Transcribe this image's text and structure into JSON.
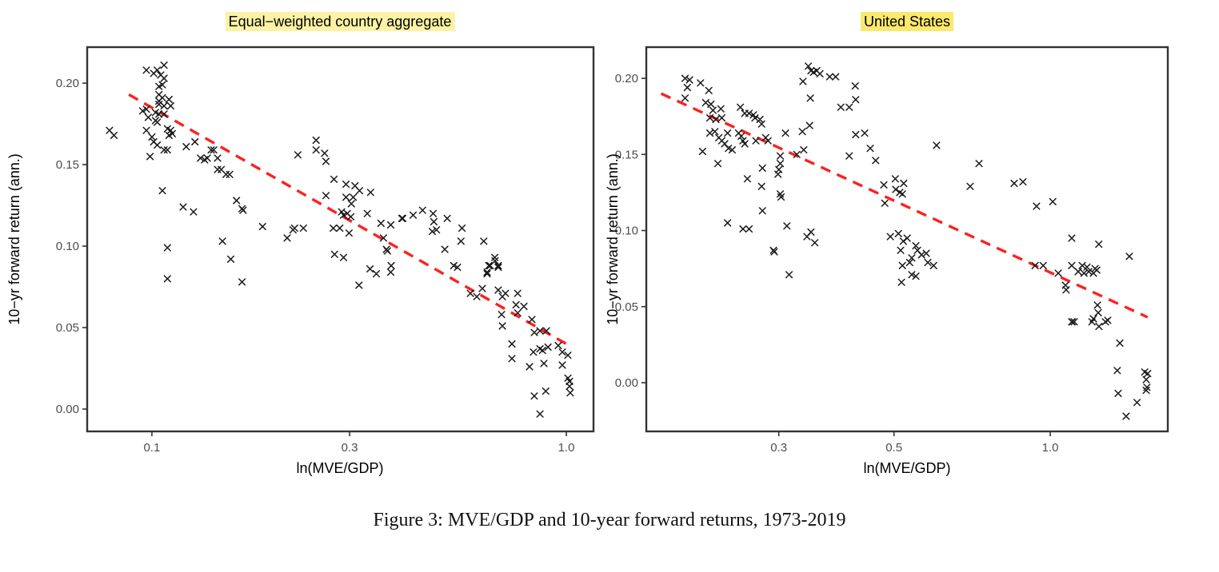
{
  "figure": {
    "caption": "Figure 3: MVE/GDP and 10-year forward returns, 1973-2019"
  },
  "colors": {
    "background": "#ffffff",
    "marker": "#1a1a1a",
    "trend_red": "#fb2222",
    "border": "#333333",
    "tick_text": "#4d4d4d",
    "axis_title_text": "#000000",
    "highlight_left": "#fbf2a5",
    "highlight_right": "#fae96e"
  },
  "chart_data": [
    {
      "type": "scatter",
      "title": "Equal−weighted country aggregate",
      "xlabel": "ln(MVE/GDP)",
      "ylabel": "10−yr forward return (ann.)",
      "x_scale": "log",
      "xlim": [
        0.0698,
        1.163
      ],
      "ylim": [
        -0.0137,
        0.2221
      ],
      "xticks": {
        "values": [
          0.1,
          0.3,
          1.0
        ],
        "labels": [
          "0.1",
          "0.3",
          "1.0"
        ]
      },
      "yticks": {
        "values": [
          0.0,
          0.05,
          0.1,
          0.15,
          0.2
        ],
        "labels": [
          "0.00",
          "0.05",
          "0.10",
          "0.15",
          "0.20"
        ]
      },
      "marker": "x",
      "grid": false,
      "legend": "none",
      "trend": {
        "style": "dashed",
        "color_key": "trend_red",
        "x": [
          0.088,
          1.0
        ],
        "y": [
          0.193,
          0.04
        ]
      },
      "points": [
        [
          0.079,
          0.171
        ],
        [
          0.081,
          0.168
        ],
        [
          0.097,
          0.208
        ],
        [
          0.101,
          0.206
        ],
        [
          0.103,
          0.208
        ],
        [
          0.107,
          0.211
        ],
        [
          0.105,
          0.205
        ],
        [
          0.107,
          0.203
        ],
        [
          0.104,
          0.198
        ],
        [
          0.106,
          0.199
        ],
        [
          0.104,
          0.193
        ],
        [
          0.106,
          0.191
        ],
        [
          0.104,
          0.189
        ],
        [
          0.11,
          0.19
        ],
        [
          0.104,
          0.187
        ],
        [
          0.107,
          0.186
        ],
        [
          0.111,
          0.186
        ],
        [
          0.095,
          0.183
        ],
        [
          0.097,
          0.184
        ],
        [
          0.102,
          0.182
        ],
        [
          0.104,
          0.181
        ],
        [
          0.107,
          0.181
        ],
        [
          0.098,
          0.179
        ],
        [
          0.102,
          0.177
        ],
        [
          0.103,
          0.176
        ],
        [
          0.097,
          0.171
        ],
        [
          0.1,
          0.167
        ],
        [
          0.101,
          0.164
        ],
        [
          0.103,
          0.162
        ],
        [
          0.109,
          0.172
        ],
        [
          0.111,
          0.171
        ],
        [
          0.11,
          0.168
        ],
        [
          0.112,
          0.169
        ],
        [
          0.107,
          0.159
        ],
        [
          0.109,
          0.159
        ],
        [
          0.099,
          0.155
        ],
        [
          0.121,
          0.161
        ],
        [
          0.127,
          0.164
        ],
        [
          0.131,
          0.154
        ],
        [
          0.134,
          0.153
        ],
        [
          0.136,
          0.154
        ],
        [
          0.141,
          0.159
        ],
        [
          0.144,
          0.154
        ],
        [
          0.147,
          0.147
        ],
        [
          0.151,
          0.144
        ],
        [
          0.154,
          0.144
        ],
        [
          0.139,
          0.159
        ],
        [
          0.144,
          0.147
        ],
        [
          0.16,
          0.128
        ],
        [
          0.165,
          0.123
        ],
        [
          0.166,
          0.122
        ],
        [
          0.185,
          0.112
        ],
        [
          0.106,
          0.134
        ],
        [
          0.119,
          0.124
        ],
        [
          0.126,
          0.121
        ],
        [
          0.109,
          0.099
        ],
        [
          0.148,
          0.103
        ],
        [
          0.155,
          0.092
        ],
        [
          0.109,
          0.08
        ],
        [
          0.165,
          0.078
        ],
        [
          0.212,
          0.105
        ],
        [
          0.219,
          0.11
        ],
        [
          0.221,
          0.111
        ],
        [
          0.232,
          0.111
        ],
        [
          0.225,
          0.156
        ],
        [
          0.249,
          0.165
        ],
        [
          0.249,
          0.159
        ],
        [
          0.261,
          0.157
        ],
        [
          0.263,
          0.152
        ],
        [
          0.275,
          0.141
        ],
        [
          0.263,
          0.131
        ],
        [
          0.294,
          0.138
        ],
        [
          0.309,
          0.137
        ],
        [
          0.294,
          0.13
        ],
        [
          0.306,
          0.13
        ],
        [
          0.317,
          0.134
        ],
        [
          0.337,
          0.133
        ],
        [
          0.303,
          0.126
        ],
        [
          0.287,
          0.121
        ],
        [
          0.296,
          0.12
        ],
        [
          0.29,
          0.119
        ],
        [
          0.302,
          0.118
        ],
        [
          0.331,
          0.12
        ],
        [
          0.274,
          0.111
        ],
        [
          0.284,
          0.111
        ],
        [
          0.299,
          0.108
        ],
        [
          0.276,
          0.095
        ],
        [
          0.29,
          0.093
        ],
        [
          0.316,
          0.076
        ],
        [
          0.336,
          0.086
        ],
        [
          0.348,
          0.083
        ],
        [
          0.378,
          0.088
        ],
        [
          0.377,
          0.084
        ],
        [
          0.357,
          0.114
        ],
        [
          0.377,
          0.113
        ],
        [
          0.401,
          0.117
        ],
        [
          0.362,
          0.105
        ],
        [
          0.368,
          0.098
        ],
        [
          0.37,
          0.097
        ],
        [
          0.403,
          0.117
        ],
        [
          0.427,
          0.119
        ],
        [
          0.45,
          0.122
        ],
        [
          0.477,
          0.12
        ],
        [
          0.479,
          0.115
        ],
        [
          0.486,
          0.11
        ],
        [
          0.475,
          0.109
        ],
        [
          0.516,
          0.117
        ],
        [
          0.56,
          0.111
        ],
        [
          0.557,
          0.103
        ],
        [
          0.632,
          0.103
        ],
        [
          0.509,
          0.098
        ],
        [
          0.535,
          0.088
        ],
        [
          0.672,
          0.093
        ],
        [
          0.673,
          0.091
        ],
        [
          0.655,
          0.088
        ],
        [
          0.685,
          0.087
        ],
        [
          0.644,
          0.084
        ],
        [
          0.546,
          0.087
        ],
        [
          0.65,
          0.088
        ],
        [
          0.685,
          0.088
        ],
        [
          0.644,
          0.083
        ],
        [
          0.627,
          0.074
        ],
        [
          0.587,
          0.071
        ],
        [
          0.608,
          0.069
        ],
        [
          0.685,
          0.073
        ],
        [
          0.713,
          0.071
        ],
        [
          0.701,
          0.069
        ],
        [
          0.763,
          0.071
        ],
        [
          0.756,
          0.064
        ],
        [
          0.79,
          0.063
        ],
        [
          0.698,
          0.058
        ],
        [
          0.763,
          0.059
        ],
        [
          0.701,
          0.051
        ],
        [
          0.826,
          0.055
        ],
        [
          0.837,
          0.047
        ],
        [
          0.864,
          0.048
        ],
        [
          0.895,
          0.048
        ],
        [
          0.739,
          0.04
        ],
        [
          0.833,
          0.035
        ],
        [
          0.864,
          0.037
        ],
        [
          0.876,
          0.036
        ],
        [
          0.903,
          0.038
        ],
        [
          0.956,
          0.039
        ],
        [
          0.978,
          0.035
        ],
        [
          1.009,
          0.033
        ],
        [
          0.739,
          0.031
        ],
        [
          0.815,
          0.026
        ],
        [
          0.883,
          0.028
        ],
        [
          0.978,
          0.027
        ],
        [
          1.009,
          0.019
        ],
        [
          1.018,
          0.017
        ],
        [
          1.018,
          0.014
        ],
        [
          1.022,
          0.01
        ],
        [
          0.837,
          0.008
        ],
        [
          0.892,
          0.011
        ],
        [
          0.864,
          -0.003
        ]
      ]
    },
    {
      "type": "scatter",
      "title": "United States",
      "xlabel": "ln(MVE/GDP)",
      "ylabel": "10−yr forward return (ann.)",
      "x_scale": "log",
      "xlim": [
        0.1667,
        1.684
      ],
      "ylim": [
        -0.032,
        0.2205
      ],
      "xticks": {
        "values": [
          0.3,
          0.5,
          1.0
        ],
        "labels": [
          "0.3",
          "0.5",
          "1.0"
        ]
      },
      "yticks": {
        "values": [
          0.0,
          0.05,
          0.1,
          0.15,
          0.2
        ],
        "labels": [
          "0.00",
          "0.05",
          "0.10",
          "0.15",
          "0.20"
        ]
      },
      "marker": "x",
      "grid": false,
      "legend": "none",
      "trend": {
        "style": "dashed",
        "color_key": "trend_red",
        "x": [
          0.178,
          1.54
        ],
        "y": [
          0.19,
          0.043
        ]
      },
      "points": [
        [
          0.198,
          0.2
        ],
        [
          0.202,
          0.199
        ],
        [
          0.212,
          0.197
        ],
        [
          0.2,
          0.194
        ],
        [
          0.198,
          0.187
        ],
        [
          0.22,
          0.192
        ],
        [
          0.217,
          0.184
        ],
        [
          0.222,
          0.183
        ],
        [
          0.224,
          0.179
        ],
        [
          0.232,
          0.18
        ],
        [
          0.221,
          0.174
        ],
        [
          0.227,
          0.173
        ],
        [
          0.233,
          0.174
        ],
        [
          0.253,
          0.181
        ],
        [
          0.258,
          0.177
        ],
        [
          0.263,
          0.177
        ],
        [
          0.268,
          0.176
        ],
        [
          0.27,
          0.174
        ],
        [
          0.276,
          0.173
        ],
        [
          0.278,
          0.17
        ],
        [
          0.221,
          0.164
        ],
        [
          0.226,
          0.165
        ],
        [
          0.23,
          0.161
        ],
        [
          0.239,
          0.164
        ],
        [
          0.233,
          0.159
        ],
        [
          0.236,
          0.157
        ],
        [
          0.24,
          0.154
        ],
        [
          0.244,
          0.153
        ],
        [
          0.251,
          0.164
        ],
        [
          0.254,
          0.162
        ],
        [
          0.256,
          0.159
        ],
        [
          0.258,
          0.157
        ],
        [
          0.271,
          0.159
        ],
        [
          0.283,
          0.161
        ],
        [
          0.286,
          0.159
        ],
        [
          0.214,
          0.152
        ],
        [
          0.229,
          0.144
        ],
        [
          0.302,
          0.149
        ],
        [
          0.302,
          0.144
        ],
        [
          0.3,
          0.14
        ],
        [
          0.299,
          0.137
        ],
        [
          0.279,
          0.141
        ],
        [
          0.261,
          0.134
        ],
        [
          0.278,
          0.129
        ],
        [
          0.309,
          0.164
        ],
        [
          0.333,
          0.165
        ],
        [
          0.344,
          0.169
        ],
        [
          0.334,
          0.198
        ],
        [
          0.342,
          0.208
        ],
        [
          0.346,
          0.205
        ],
        [
          0.35,
          0.204
        ],
        [
          0.355,
          0.205
        ],
        [
          0.36,
          0.203
        ],
        [
          0.376,
          0.201
        ],
        [
          0.386,
          0.201
        ],
        [
          0.395,
          0.181
        ],
        [
          0.345,
          0.187
        ],
        [
          0.325,
          0.15
        ],
        [
          0.335,
          0.153
        ],
        [
          0.302,
          0.124
        ],
        [
          0.303,
          0.122
        ],
        [
          0.279,
          0.113
        ],
        [
          0.311,
          0.103
        ],
        [
          0.421,
          0.195
        ],
        [
          0.422,
          0.186
        ],
        [
          0.41,
          0.181
        ],
        [
          0.422,
          0.163
        ],
        [
          0.439,
          0.164
        ],
        [
          0.45,
          0.154
        ],
        [
          0.41,
          0.149
        ],
        [
          0.461,
          0.146
        ],
        [
          0.604,
          0.156
        ],
        [
          0.729,
          0.144
        ],
        [
          0.503,
          0.134
        ],
        [
          0.478,
          0.13
        ],
        [
          0.522,
          0.131
        ],
        [
          0.504,
          0.127
        ],
        [
          0.513,
          0.125
        ],
        [
          0.519,
          0.124
        ],
        [
          0.701,
          0.129
        ],
        [
          0.852,
          0.131
        ],
        [
          0.886,
          0.132
        ],
        [
          0.239,
          0.105
        ],
        [
          0.256,
          0.101
        ],
        [
          0.263,
          0.101
        ],
        [
          0.34,
          0.096
        ],
        [
          0.346,
          0.099
        ],
        [
          0.352,
          0.092
        ],
        [
          0.293,
          0.087
        ],
        [
          0.294,
          0.086
        ],
        [
          0.314,
          0.071
        ],
        [
          0.48,
          0.118
        ],
        [
          0.492,
          0.096
        ],
        [
          0.51,
          0.098
        ],
        [
          0.521,
          0.093
        ],
        [
          0.53,
          0.095
        ],
        [
          0.551,
          0.09
        ],
        [
          0.515,
          0.087
        ],
        [
          0.555,
          0.087
        ],
        [
          0.541,
          0.082
        ],
        [
          0.565,
          0.084
        ],
        [
          0.577,
          0.085
        ],
        [
          0.536,
          0.079
        ],
        [
          0.581,
          0.079
        ],
        [
          0.596,
          0.077
        ],
        [
          0.519,
          0.077
        ],
        [
          0.541,
          0.071
        ],
        [
          0.551,
          0.07
        ],
        [
          0.517,
          0.066
        ],
        [
          0.941,
          0.116
        ],
        [
          1.011,
          0.119
        ],
        [
          1.1,
          0.095
        ],
        [
          1.24,
          0.091
        ],
        [
          1.42,
          0.083
        ],
        [
          0.935,
          0.077
        ],
        [
          0.969,
          0.077
        ],
        [
          1.036,
          0.072
        ],
        [
          1.1,
          0.077
        ],
        [
          1.132,
          0.073
        ],
        [
          1.152,
          0.077
        ],
        [
          1.161,
          0.072
        ],
        [
          1.177,
          0.076
        ],
        [
          1.186,
          0.073
        ],
        [
          1.211,
          0.072
        ],
        [
          1.22,
          0.075
        ],
        [
          1.229,
          0.074
        ],
        [
          1.07,
          0.064
        ],
        [
          1.073,
          0.061
        ],
        [
          1.233,
          0.051
        ],
        [
          1.237,
          0.046
        ],
        [
          1.1,
          0.04
        ],
        [
          1.102,
          0.04
        ],
        [
          1.112,
          0.04
        ],
        [
          1.203,
          0.04
        ],
        [
          1.211,
          0.042
        ],
        [
          1.241,
          0.037
        ],
        [
          1.277,
          0.04
        ],
        [
          1.29,
          0.041
        ],
        [
          1.361,
          0.026
        ],
        [
          1.346,
          0.008
        ],
        [
          1.351,
          -0.007
        ],
        [
          1.469,
          -0.013
        ],
        [
          1.4,
          -0.022
        ],
        [
          1.52,
          0.007
        ],
        [
          1.54,
          0.006
        ],
        [
          1.53,
          0.002
        ],
        [
          1.535,
          -0.003
        ],
        [
          1.53,
          -0.005
        ]
      ]
    }
  ]
}
